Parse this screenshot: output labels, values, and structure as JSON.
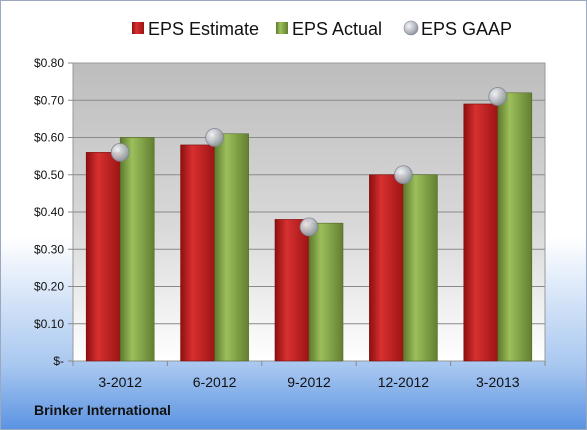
{
  "chart_data": {
    "type": "bar",
    "categories": [
      "3-2012",
      "6-2012",
      "9-2012",
      "12-2012",
      "3-2013"
    ],
    "series": [
      {
        "name": "EPS Estimate",
        "values": [
          0.56,
          0.58,
          0.38,
          0.5,
          0.69
        ],
        "color": "#c21e1e"
      },
      {
        "name": "EPS Actual",
        "values": [
          0.6,
          0.61,
          0.37,
          0.5,
          0.72
        ],
        "color": "#7fa046"
      }
    ],
    "gaap": {
      "name": "EPS GAAP",
      "values": [
        0.56,
        0.6,
        0.36,
        0.5,
        0.71
      ],
      "color": "#b8bcc4"
    },
    "yticks": [
      "$-",
      "$0.10",
      "$0.20",
      "$0.30",
      "$0.40",
      "$0.50",
      "$0.60",
      "$0.70",
      "$0.80"
    ],
    "ylim": [
      0,
      0.8
    ],
    "grid": true,
    "legend": "top"
  },
  "footer": {
    "company": "Brinker International"
  }
}
